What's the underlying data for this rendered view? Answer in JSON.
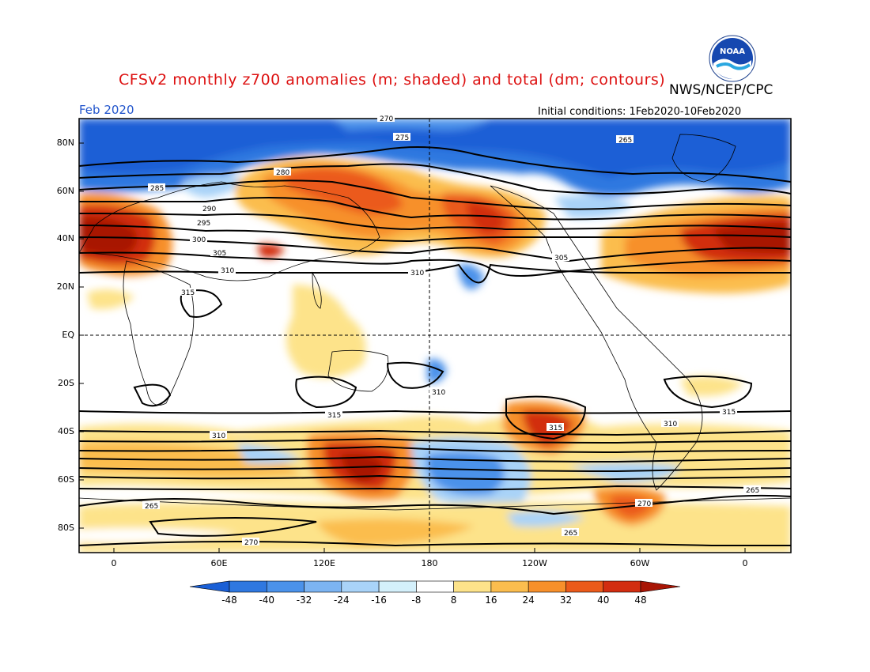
{
  "header": {
    "title": "CFSv2 monthly z700 anomalies (m; shaded) and total (dm; contours)",
    "org": "NWS/NCEP/CPC",
    "month": "Feb 2020",
    "initial_conditions": "Initial conditions:  1Feb2020-10Feb2020",
    "logo_text": "NOAA"
  },
  "axes": {
    "y_labels": [
      "80N",
      "60N",
      "40N",
      "20N",
      "EQ",
      "20S",
      "40S",
      "60S",
      "80S"
    ],
    "x_labels": [
      "0",
      "60E",
      "120E",
      "180",
      "120W",
      "60W",
      "0"
    ]
  },
  "colorbar": {
    "ticks": [
      "-48",
      "-40",
      "-32",
      "-24",
      "-16",
      "-8",
      "8",
      "16",
      "24",
      "32",
      "40",
      "48"
    ],
    "colors": [
      "#1a5fd6",
      "#2f78e0",
      "#4b92ea",
      "#7cb4f2",
      "#a9d3f8",
      "#d4f0fb",
      "#ffffff",
      "#fde38a",
      "#fbbd4e",
      "#f7902b",
      "#eb5a1a",
      "#d22d10",
      "#a81505"
    ]
  },
  "contour_labels": [
    "270",
    "275",
    "280",
    "285",
    "290",
    "295",
    "300",
    "305",
    "310",
    "315",
    "265"
  ]
}
